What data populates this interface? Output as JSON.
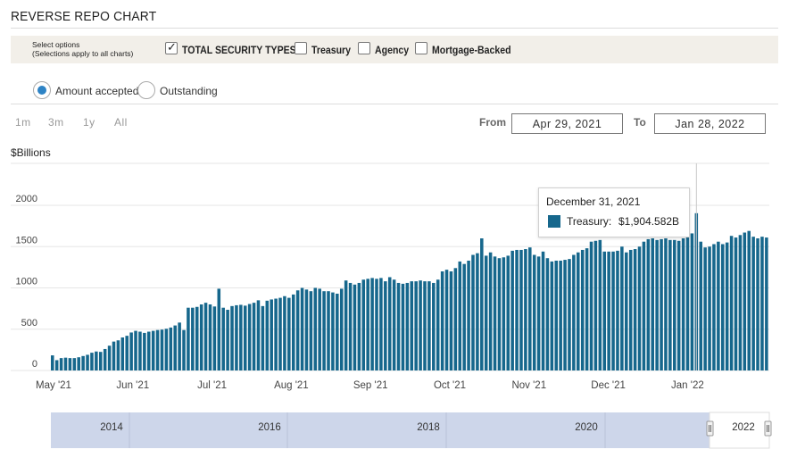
{
  "page": {
    "title": "REVERSE REPO CHART",
    "unit_label": "$Billions"
  },
  "options": {
    "hint_line1": "Select options",
    "hint_line2": "(Selections apply to all charts)",
    "checkboxes": [
      {
        "label": "TOTAL SECURITY TYPES",
        "checked": true
      },
      {
        "label": "Treasury",
        "checked": false
      },
      {
        "label": "Agency",
        "checked": false
      },
      {
        "label": "Mortgage-Backed",
        "checked": false
      }
    ]
  },
  "measure": {
    "amount_accepted": "Amount accepted",
    "outstanding": "Outstanding",
    "selected": "amount_accepted"
  },
  "range": {
    "buttons": [
      "1m",
      "3m",
      "1y",
      "All"
    ],
    "from_label": "From",
    "from_value": "Apr 29, 2021",
    "to_label": "To",
    "to_value": "Jan 28, 2022"
  },
  "tooltip": {
    "date": "December 31, 2021",
    "series": "Treasury:",
    "value": "$1,904.582B"
  },
  "navigator": {
    "labels": [
      "2014",
      "2016",
      "2018",
      "2020",
      "2022"
    ]
  },
  "colors": {
    "bar": "#16678c",
    "navigator_fill": "#cdd6ea",
    "accent": "#2e83c5"
  },
  "chart_data": {
    "type": "bar",
    "title": "REVERSE REPO CHART",
    "ylabel": "$Billions",
    "ylim": [
      0,
      2000
    ],
    "yticks": [
      "0",
      "500",
      "1000",
      "1500",
      "2000"
    ],
    "x_tick_labels": [
      "May '21",
      "Jun '21",
      "Jul '21",
      "Aug '21",
      "Sep '21",
      "Oct '21",
      "Nov '21",
      "Dec '21",
      "Jan '22"
    ],
    "grid": true,
    "series": [
      {
        "name": "Treasury",
        "values": [
          183,
          125,
          150,
          155,
          150,
          150,
          160,
          175,
          190,
          215,
          230,
          225,
          260,
          300,
          350,
          365,
          400,
          420,
          460,
          480,
          470,
          455,
          470,
          480,
          490,
          495,
          505,
          520,
          545,
          580,
          490,
          760,
          760,
          770,
          800,
          820,
          800,
          775,
          990,
          760,
          735,
          780,
          790,
          795,
          785,
          805,
          820,
          850,
          780,
          845,
          860,
          870,
          880,
          900,
          880,
          920,
          970,
          1000,
          980,
          960,
          1000,
          990,
          960,
          960,
          945,
          930,
          990,
          1090,
          1060,
          1040,
          1060,
          1100,
          1110,
          1120,
          1110,
          1120,
          1080,
          1130,
          1100,
          1060,
          1050,
          1060,
          1080,
          1080,
          1090,
          1080,
          1080,
          1060,
          1100,
          1200,
          1220,
          1200,
          1240,
          1320,
          1290,
          1330,
          1400,
          1420,
          1600,
          1390,
          1430,
          1380,
          1360,
          1370,
          1390,
          1450,
          1460,
          1460,
          1470,
          1490,
          1400,
          1380,
          1440,
          1360,
          1320,
          1330,
          1330,
          1340,
          1350,
          1400,
          1430,
          1460,
          1480,
          1560,
          1570,
          1580,
          1440,
          1440,
          1440,
          1450,
          1500,
          1430,
          1460,
          1470,
          1500,
          1560,
          1590,
          1600,
          1580,
          1590,
          1600,
          1580,
          1580,
          1570,
          1600,
          1610,
          1660,
          1904.582,
          1560,
          1490,
          1500,
          1530,
          1560,
          1530,
          1550,
          1630,
          1610,
          1640,
          1670,
          1690,
          1620,
          1600,
          1620,
          1610
        ]
      }
    ]
  }
}
